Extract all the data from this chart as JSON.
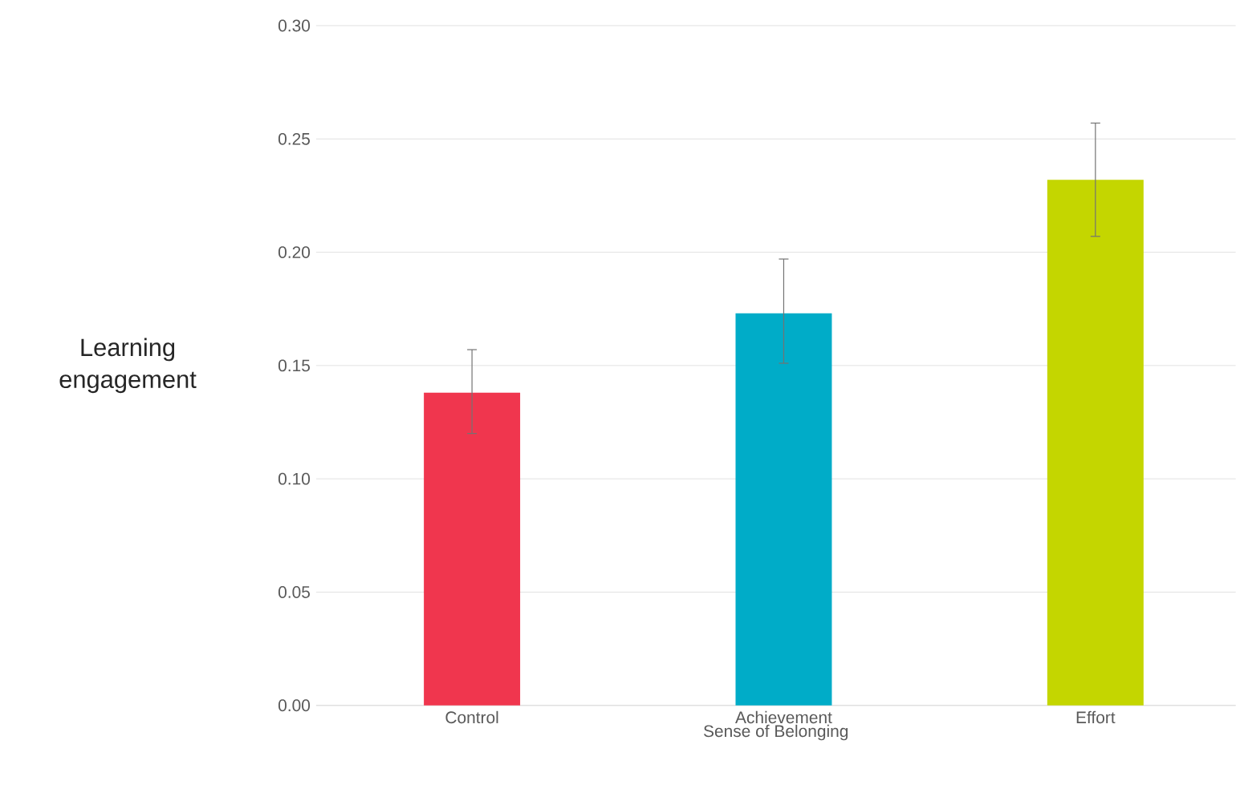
{
  "chart_data": {
    "type": "bar",
    "xlabel": "Sense of Belonging",
    "ylabel": "Learning engagement",
    "categories": [
      "Control",
      "Achievement",
      "Effort"
    ],
    "values": [
      0.138,
      0.173,
      0.232
    ],
    "colors": [
      "#f0364e",
      "#00acc8",
      "#c4d600"
    ],
    "errors": [
      [
        0.12,
        0.157
      ],
      [
        0.151,
        0.197
      ],
      [
        0.207,
        0.257
      ]
    ],
    "ylim": [
      0,
      0.3
    ],
    "yticks": [
      {
        "value": 0,
        "label": "0.00"
      },
      {
        "value": 0.05,
        "label": "0.05"
      },
      {
        "value": 0.1,
        "label": "0.10"
      },
      {
        "value": 0.15,
        "label": "0.15"
      },
      {
        "value": 0.2,
        "label": "0.20"
      },
      {
        "value": 0.25,
        "label": "0.25"
      },
      {
        "value": 0.3,
        "label": "0.30"
      }
    ],
    "grid": "y"
  }
}
